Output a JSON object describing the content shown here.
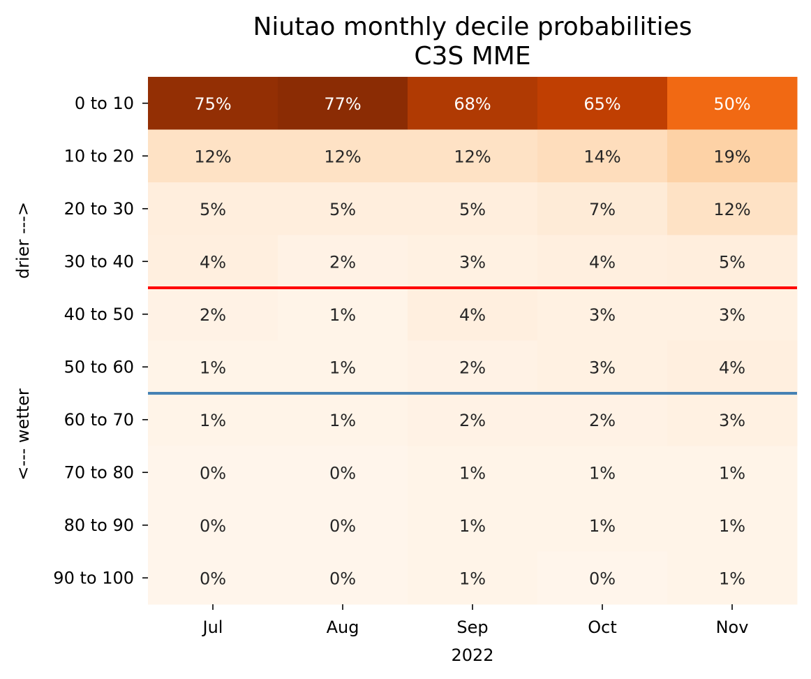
{
  "chart_data": {
    "type": "heatmap",
    "title": "Niutao monthly decile probabilities",
    "subtitle": "C3S MME",
    "xlabel": "2022",
    "ylabel_upper": "drier --->",
    "ylabel_lower": "<--- wetter",
    "x_categories": [
      "Jul",
      "Aug",
      "Sep",
      "Oct",
      "Nov"
    ],
    "y_categories": [
      "0 to 10",
      "10 to 20",
      "20 to 30",
      "30 to 40",
      "40 to 50",
      "50 to 60",
      "60 to 70",
      "70 to 80",
      "80 to 90",
      "90 to 100"
    ],
    "values": [
      [
        75,
        77,
        68,
        65,
        50
      ],
      [
        12,
        12,
        12,
        14,
        19
      ],
      [
        5,
        5,
        5,
        7,
        12
      ],
      [
        4,
        2,
        3,
        4,
        5
      ],
      [
        2,
        1,
        4,
        3,
        3
      ],
      [
        1,
        1,
        2,
        3,
        4
      ],
      [
        1,
        1,
        2,
        2,
        3
      ],
      [
        0,
        0,
        1,
        1,
        1
      ],
      [
        0,
        0,
        1,
        1,
        1
      ],
      [
        0,
        0,
        1,
        0,
        1
      ]
    ],
    "value_format": "percent",
    "colormap": "Oranges",
    "color_range": [
      0,
      80
    ],
    "threshold_lines": [
      {
        "after_row": "30 to 40",
        "color": "#ff0000"
      },
      {
        "after_row": "50 to 60",
        "color": "#4682b4"
      }
    ],
    "dark_text_color": "#262626",
    "light_text_color": "#ffffff",
    "light_text_cutoff": 40
  }
}
